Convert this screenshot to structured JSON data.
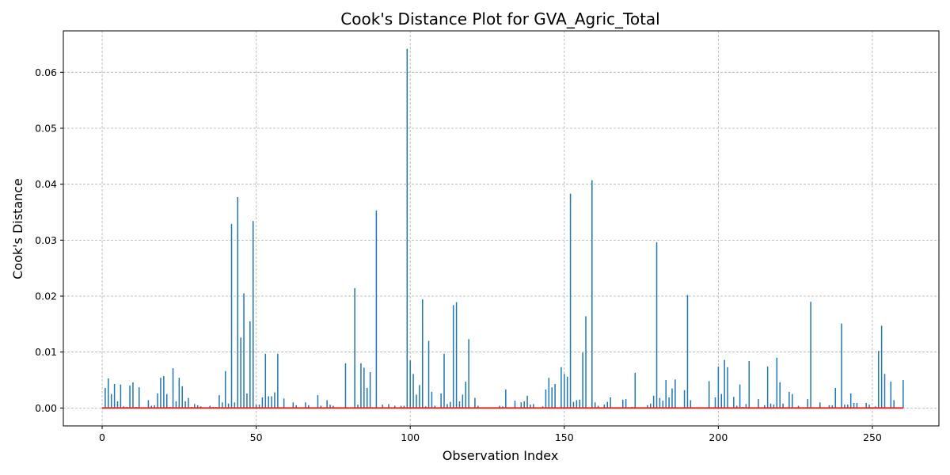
{
  "chart_data": {
    "type": "bar",
    "title": "Cook's Distance Plot for GVA_Agric_Total",
    "xlabel": "Observation Index",
    "ylabel": "Cook's Distance",
    "xlim": [
      -12.6,
      271.6
    ],
    "ylim": [
      -0.0032,
      0.0674
    ],
    "xticks": [
      0,
      50,
      100,
      150,
      200,
      250
    ],
    "yticks": [
      0.0,
      0.01,
      0.02,
      0.03,
      0.04,
      0.05,
      0.06
    ],
    "ytick_labels": [
      "0.00",
      "0.01",
      "0.02",
      "0.03",
      "0.04",
      "0.05",
      "0.06"
    ],
    "grid": true,
    "stem_color": "#1f77b4",
    "baseline_color": "#d62728",
    "series": [
      {
        "values": [
          0.0001,
          0.0036,
          0.0053,
          0.0025,
          0.0043,
          0.0012,
          0.0042,
          0.0003,
          0.0002,
          0.004,
          0.0046,
          0.0002,
          0.0037,
          0.0001,
          0.0001,
          0.0014,
          0.0004,
          0.0005,
          0.0026,
          0.0054,
          0.0057,
          0.0025,
          0.0002,
          0.0071,
          0.0012,
          0.0054,
          0.0039,
          0.0012,
          0.0018,
          0.0002,
          0.0007,
          0.0005,
          0.0003,
          0.0001,
          0.0001,
          0.0004,
          0.0002,
          0.0002,
          0.0023,
          0.001,
          0.0066,
          0.0008,
          0.0329,
          0.001,
          0.0377,
          0.0126,
          0.0205,
          0.0026,
          0.0155,
          0.0334,
          0.0006,
          0.0006,
          0.0019,
          0.0097,
          0.0021,
          0.0021,
          0.0028,
          0.0097,
          0.0001,
          0.0017,
          0.0001,
          0.0001,
          0.001,
          0.0005,
          0.0001,
          0.0001,
          0.001,
          0.0005,
          0.0001,
          0.0001,
          0.0023,
          0.0004,
          0.0001,
          0.0014,
          0.0006,
          0.0004,
          0.0001,
          0.0001,
          0.0001,
          0.008,
          0.0001,
          0.0001,
          0.0214,
          0.0006,
          0.008,
          0.0072,
          0.0036,
          0.0064,
          0.0001,
          0.0353,
          0.0001,
          0.0006,
          0.0001,
          0.0007,
          0.0001,
          0.0004,
          0.0001,
          0.0004,
          0.0004,
          0.0642,
          0.0085,
          0.0061,
          0.0024,
          0.0041,
          0.0194,
          0.0003,
          0.012,
          0.0029,
          0.0004,
          0.0001,
          0.0026,
          0.0097,
          0.0007,
          0.0011,
          0.0184,
          0.0189,
          0.0012,
          0.0024,
          0.0047,
          0.0123,
          0.0001,
          0.0018,
          0.0004,
          0.0001,
          0.0001,
          0.0001,
          0.0001,
          0.0001,
          0.0001,
          0.0004,
          0.0003,
          0.0033,
          0.0001,
          0.0001,
          0.0013,
          0.0001,
          0.001,
          0.0012,
          0.0022,
          0.0006,
          0.0007,
          0.0001,
          0.0001,
          0.0003,
          0.0033,
          0.0054,
          0.0037,
          0.0043,
          0.0001,
          0.0073,
          0.0061,
          0.0056,
          0.0383,
          0.0011,
          0.0014,
          0.0015,
          0.0099,
          0.0164,
          0.0001,
          0.0407,
          0.001,
          0.0004,
          0.0001,
          0.0006,
          0.0011,
          0.0019,
          0.0001,
          0.0001,
          0.0001,
          0.0015,
          0.0016,
          0.0001,
          0.0002,
          0.0063,
          0.0001,
          0.0001,
          0.0001,
          0.0005,
          0.0008,
          0.0022,
          0.0296,
          0.0018,
          0.0013,
          0.005,
          0.0019,
          0.0035,
          0.0051,
          0.0001,
          0.0001,
          0.0032,
          0.0202,
          0.0014,
          0.0001,
          0.0001,
          0.0001,
          0.0001,
          0.0001,
          0.0048,
          0.0001,
          0.0019,
          0.0074,
          0.0025,
          0.0086,
          0.0073,
          0.0001,
          0.002,
          0.0004,
          0.0042,
          0.0002,
          0.0007,
          0.0084,
          0.0001,
          0.0001,
          0.0016,
          0.0001,
          0.0005,
          0.0074,
          0.0008,
          0.0006,
          0.009,
          0.0046,
          0.0008,
          0.0001,
          0.0029,
          0.0025,
          0.0001,
          0.0004,
          0.0001,
          0.0001,
          0.0016,
          0.019,
          0.0001,
          0.0001,
          0.001,
          0.0001,
          0.0001,
          0.0005,
          0.0005,
          0.0036,
          0.0001,
          0.0151,
          0.0006,
          0.0006,
          0.0026,
          0.0009,
          0.0009,
          0.0001,
          0.0001,
          0.0009,
          0.0006,
          0.0001,
          0.0003,
          0.0102,
          0.0147,
          0.0061,
          0.0001,
          0.0047,
          0.0014,
          0.0001,
          0.0001,
          0.005
        ]
      }
    ]
  }
}
